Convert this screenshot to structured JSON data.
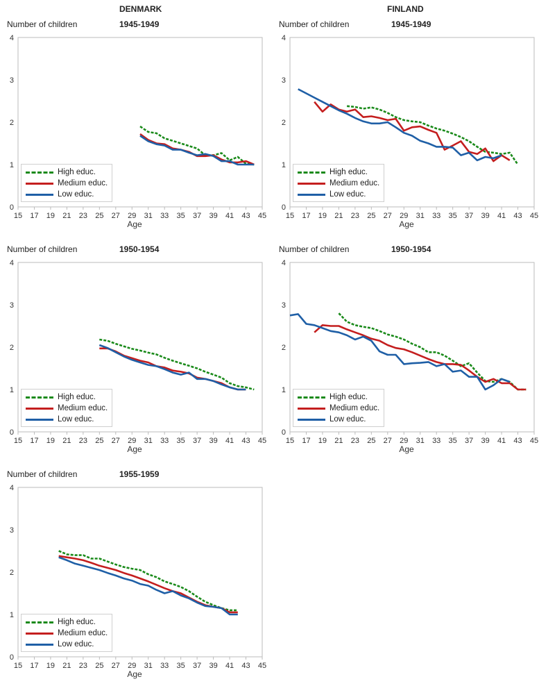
{
  "countries": {
    "left": "DENMARK",
    "right": "FINLAND"
  },
  "colors": {
    "high": "#1a8a1a",
    "medium": "#c41e1e",
    "low": "#1f5fa6",
    "frame": "#bbbbbb"
  },
  "chart_data": [
    {
      "id": "dk-1945",
      "type": "line",
      "title": "1945-1949",
      "ylabel": "Number of children",
      "xlabel": "Age",
      "xlim": [
        15,
        45
      ],
      "ylim": [
        0,
        4
      ],
      "xticks": [
        "15",
        "17",
        "19",
        "21",
        "23",
        "25",
        "27",
        "29",
        "31",
        "33",
        "35",
        "37",
        "39",
        "41",
        "43",
        "45"
      ],
      "yticks": [
        "0",
        "1",
        "2",
        "3",
        "4"
      ],
      "legend": "bottom-left",
      "series": [
        {
          "name": "High educ.",
          "x": [
            30,
            31,
            32,
            33,
            34,
            35,
            36,
            37,
            38,
            39,
            40,
            41,
            42,
            43,
            44
          ],
          "y": [
            1.9,
            1.77,
            1.74,
            1.62,
            1.56,
            1.5,
            1.44,
            1.38,
            1.22,
            1.22,
            1.27,
            1.1,
            1.18,
            1.02,
            1.0
          ]
        },
        {
          "name": "Medium educ.",
          "x": [
            30,
            31,
            32,
            33,
            34,
            35,
            36,
            37,
            38,
            39,
            40,
            41,
            42,
            43,
            44
          ],
          "y": [
            1.72,
            1.58,
            1.5,
            1.48,
            1.38,
            1.35,
            1.3,
            1.2,
            1.2,
            1.22,
            1.12,
            1.05,
            1.05,
            1.08,
            1.0
          ]
        },
        {
          "name": "Low educ.",
          "x": [
            30,
            31,
            32,
            33,
            34,
            35,
            36,
            37,
            38,
            39,
            40,
            41,
            42,
            43,
            44
          ],
          "y": [
            1.68,
            1.55,
            1.48,
            1.45,
            1.35,
            1.35,
            1.28,
            1.22,
            1.25,
            1.2,
            1.08,
            1.08,
            1.0,
            1.0,
            1.0
          ]
        }
      ]
    },
    {
      "id": "fi-1945",
      "type": "line",
      "title": "1945-1949",
      "ylabel": "Number of children",
      "xlabel": "Age",
      "xlim": [
        15,
        45
      ],
      "ylim": [
        0,
        4
      ],
      "xticks": [
        "15",
        "17",
        "19",
        "21",
        "23",
        "25",
        "27",
        "29",
        "31",
        "33",
        "35",
        "37",
        "39",
        "41",
        "43",
        "45"
      ],
      "yticks": [
        "0",
        "1",
        "2",
        "3",
        "4"
      ],
      "legend": "bottom-left",
      "series": [
        {
          "name": "High educ.",
          "x": [
            22,
            23,
            24,
            25,
            26,
            27,
            28,
            29,
            30,
            31,
            32,
            33,
            34,
            35,
            36,
            37,
            38,
            39,
            40,
            41,
            42,
            43
          ],
          "y": [
            2.38,
            2.36,
            2.32,
            2.35,
            2.3,
            2.22,
            2.12,
            2.05,
            2.02,
            2.0,
            1.92,
            1.85,
            1.8,
            1.73,
            1.65,
            1.55,
            1.42,
            1.3,
            1.28,
            1.25,
            1.28,
            1.0
          ]
        },
        {
          "name": "Medium educ.",
          "x": [
            18,
            19,
            20,
            21,
            22,
            23,
            24,
            25,
            26,
            27,
            28,
            29,
            30,
            31,
            32,
            33,
            34,
            35,
            36,
            37,
            38,
            39,
            40,
            41,
            42
          ],
          "y": [
            2.48,
            2.25,
            2.42,
            2.3,
            2.25,
            2.3,
            2.12,
            2.14,
            2.1,
            2.05,
            2.08,
            1.8,
            1.88,
            1.9,
            1.82,
            1.75,
            1.35,
            1.45,
            1.55,
            1.3,
            1.25,
            1.38,
            1.08,
            1.22,
            1.1
          ]
        },
        {
          "name": "Low educ.",
          "x": [
            16,
            17,
            18,
            19,
            20,
            21,
            22,
            23,
            24,
            25,
            26,
            27,
            28,
            29,
            30,
            31,
            32,
            33,
            34,
            35,
            36,
            37,
            38,
            39,
            40,
            41
          ],
          "y": [
            2.78,
            2.68,
            2.58,
            2.48,
            2.38,
            2.28,
            2.2,
            2.1,
            2.02,
            1.97,
            1.97,
            2.0,
            1.88,
            1.75,
            1.68,
            1.56,
            1.5,
            1.42,
            1.42,
            1.4,
            1.22,
            1.28,
            1.1,
            1.18,
            1.15,
            1.22
          ]
        }
      ]
    },
    {
      "id": "dk-1950",
      "type": "line",
      "title": "1950-1954",
      "ylabel": "Number of children",
      "xlabel": "Age",
      "xlim": [
        15,
        45
      ],
      "ylim": [
        0,
        4
      ],
      "xticks": [
        "15",
        "17",
        "19",
        "21",
        "23",
        "25",
        "27",
        "29",
        "31",
        "33",
        "35",
        "37",
        "39",
        "41",
        "43",
        "45"
      ],
      "yticks": [
        "0",
        "1",
        "2",
        "3",
        "4"
      ],
      "legend": "bottom-left",
      "series": [
        {
          "name": "High educ.",
          "x": [
            25,
            26,
            27,
            28,
            29,
            30,
            31,
            32,
            33,
            34,
            35,
            36,
            37,
            38,
            39,
            40,
            41,
            42,
            43,
            44
          ],
          "y": [
            2.18,
            2.15,
            2.08,
            2.02,
            1.96,
            1.92,
            1.87,
            1.83,
            1.75,
            1.68,
            1.62,
            1.56,
            1.5,
            1.42,
            1.35,
            1.28,
            1.15,
            1.08,
            1.05,
            1.0
          ]
        },
        {
          "name": "Medium educ.",
          "x": [
            25,
            26,
            27,
            28,
            29,
            30,
            31,
            32,
            33,
            34,
            35,
            36,
            37,
            38,
            39,
            40,
            41,
            42,
            43
          ],
          "y": [
            1.97,
            1.97,
            1.9,
            1.8,
            1.74,
            1.68,
            1.64,
            1.55,
            1.52,
            1.45,
            1.42,
            1.38,
            1.28,
            1.25,
            1.2,
            1.15,
            1.05,
            1.0,
            1.0
          ]
        },
        {
          "name": "Low educ.",
          "x": [
            25,
            26,
            27,
            28,
            29,
            30,
            31,
            32,
            33,
            34,
            35,
            36,
            37,
            38,
            39,
            40,
            41,
            42,
            43
          ],
          "y": [
            2.05,
            1.98,
            1.88,
            1.78,
            1.7,
            1.64,
            1.58,
            1.55,
            1.48,
            1.4,
            1.35,
            1.4,
            1.25,
            1.25,
            1.2,
            1.12,
            1.05,
            1.0,
            1.0
          ]
        }
      ]
    },
    {
      "id": "fi-1950",
      "type": "line",
      "title": "1950-1954",
      "ylabel": "Number of children",
      "xlabel": "Age",
      "xlim": [
        15,
        45
      ],
      "ylim": [
        0,
        4
      ],
      "xticks": [
        "15",
        "17",
        "19",
        "21",
        "23",
        "25",
        "27",
        "29",
        "31",
        "33",
        "35",
        "37",
        "39",
        "41",
        "43",
        "45"
      ],
      "yticks": [
        "0",
        "1",
        "2",
        "3",
        "4"
      ],
      "legend": "bottom-left",
      "series": [
        {
          "name": "High educ.",
          "x": [
            21,
            22,
            23,
            24,
            25,
            26,
            27,
            28,
            29,
            30,
            31,
            32,
            33,
            34,
            35,
            36,
            37,
            38,
            39,
            40,
            41,
            42,
            43,
            44
          ],
          "y": [
            2.8,
            2.6,
            2.52,
            2.48,
            2.45,
            2.38,
            2.3,
            2.25,
            2.18,
            2.08,
            2.0,
            1.88,
            1.88,
            1.8,
            1.68,
            1.55,
            1.62,
            1.4,
            1.2,
            1.18,
            1.25,
            1.18,
            1.0,
            1.0
          ]
        },
        {
          "name": "Medium educ.",
          "x": [
            18,
            19,
            20,
            21,
            22,
            23,
            24,
            25,
            26,
            27,
            28,
            29,
            30,
            31,
            32,
            33,
            34,
            35,
            36,
            37,
            38,
            39,
            40,
            41,
            42,
            43,
            44
          ],
          "y": [
            2.35,
            2.52,
            2.5,
            2.5,
            2.42,
            2.35,
            2.28,
            2.2,
            2.15,
            2.05,
            1.98,
            1.95,
            1.88,
            1.8,
            1.72,
            1.65,
            1.6,
            1.6,
            1.58,
            1.45,
            1.3,
            1.18,
            1.25,
            1.15,
            1.15,
            1.0,
            1.0
          ]
        },
        {
          "name": "Low educ.",
          "x": [
            15,
            16,
            17,
            18,
            19,
            20,
            21,
            22,
            23,
            24,
            25,
            26,
            27,
            28,
            29,
            30,
            31,
            32,
            33,
            34,
            35,
            36,
            37,
            38,
            39,
            40,
            41,
            42
          ],
          "y": [
            2.75,
            2.78,
            2.55,
            2.52,
            2.45,
            2.38,
            2.35,
            2.28,
            2.18,
            2.25,
            2.15,
            1.9,
            1.82,
            1.82,
            1.6,
            1.62,
            1.63,
            1.65,
            1.55,
            1.6,
            1.42,
            1.45,
            1.3,
            1.3,
            1.0,
            1.1,
            1.25,
            1.18
          ]
        }
      ]
    },
    {
      "id": "dk-1955",
      "type": "line",
      "title": "1955-1959",
      "ylabel": "Number of children",
      "xlabel": "Age",
      "xlim": [
        15,
        45
      ],
      "ylim": [
        0,
        4
      ],
      "xticks": [
        "15",
        "17",
        "19",
        "21",
        "23",
        "25",
        "27",
        "29",
        "31",
        "33",
        "35",
        "37",
        "39",
        "41",
        "43",
        "45"
      ],
      "yticks": [
        "0",
        "1",
        "2",
        "3",
        "4"
      ],
      "legend": "bottom-left",
      "series": [
        {
          "name": "High educ.",
          "x": [
            20,
            21,
            22,
            23,
            24,
            25,
            26,
            27,
            28,
            29,
            30,
            31,
            32,
            33,
            34,
            35,
            36,
            37,
            38,
            39,
            40,
            41,
            42
          ],
          "y": [
            2.5,
            2.42,
            2.4,
            2.4,
            2.32,
            2.32,
            2.25,
            2.18,
            2.12,
            2.08,
            2.05,
            1.95,
            1.88,
            1.78,
            1.72,
            1.65,
            1.55,
            1.42,
            1.3,
            1.22,
            1.15,
            1.1,
            1.1
          ]
        },
        {
          "name": "Medium educ.",
          "x": [
            20,
            21,
            22,
            23,
            24,
            25,
            26,
            27,
            28,
            29,
            30,
            31,
            32,
            33,
            34,
            35,
            36,
            37,
            38,
            39,
            40,
            41,
            42
          ],
          "y": [
            2.38,
            2.35,
            2.32,
            2.28,
            2.22,
            2.15,
            2.1,
            2.05,
            1.98,
            1.92,
            1.85,
            1.78,
            1.7,
            1.62,
            1.55,
            1.5,
            1.4,
            1.3,
            1.22,
            1.18,
            1.15,
            1.05,
            1.05
          ]
        },
        {
          "name": "Low educ.",
          "x": [
            20,
            21,
            22,
            23,
            24,
            25,
            26,
            27,
            28,
            29,
            30,
            31,
            32,
            33,
            34,
            35,
            36,
            37,
            38,
            39,
            40,
            41,
            42
          ],
          "y": [
            2.35,
            2.28,
            2.2,
            2.15,
            2.1,
            2.05,
            1.98,
            1.92,
            1.85,
            1.8,
            1.72,
            1.68,
            1.58,
            1.5,
            1.55,
            1.45,
            1.38,
            1.28,
            1.2,
            1.18,
            1.15,
            1.0,
            1.0
          ]
        }
      ]
    }
  ]
}
